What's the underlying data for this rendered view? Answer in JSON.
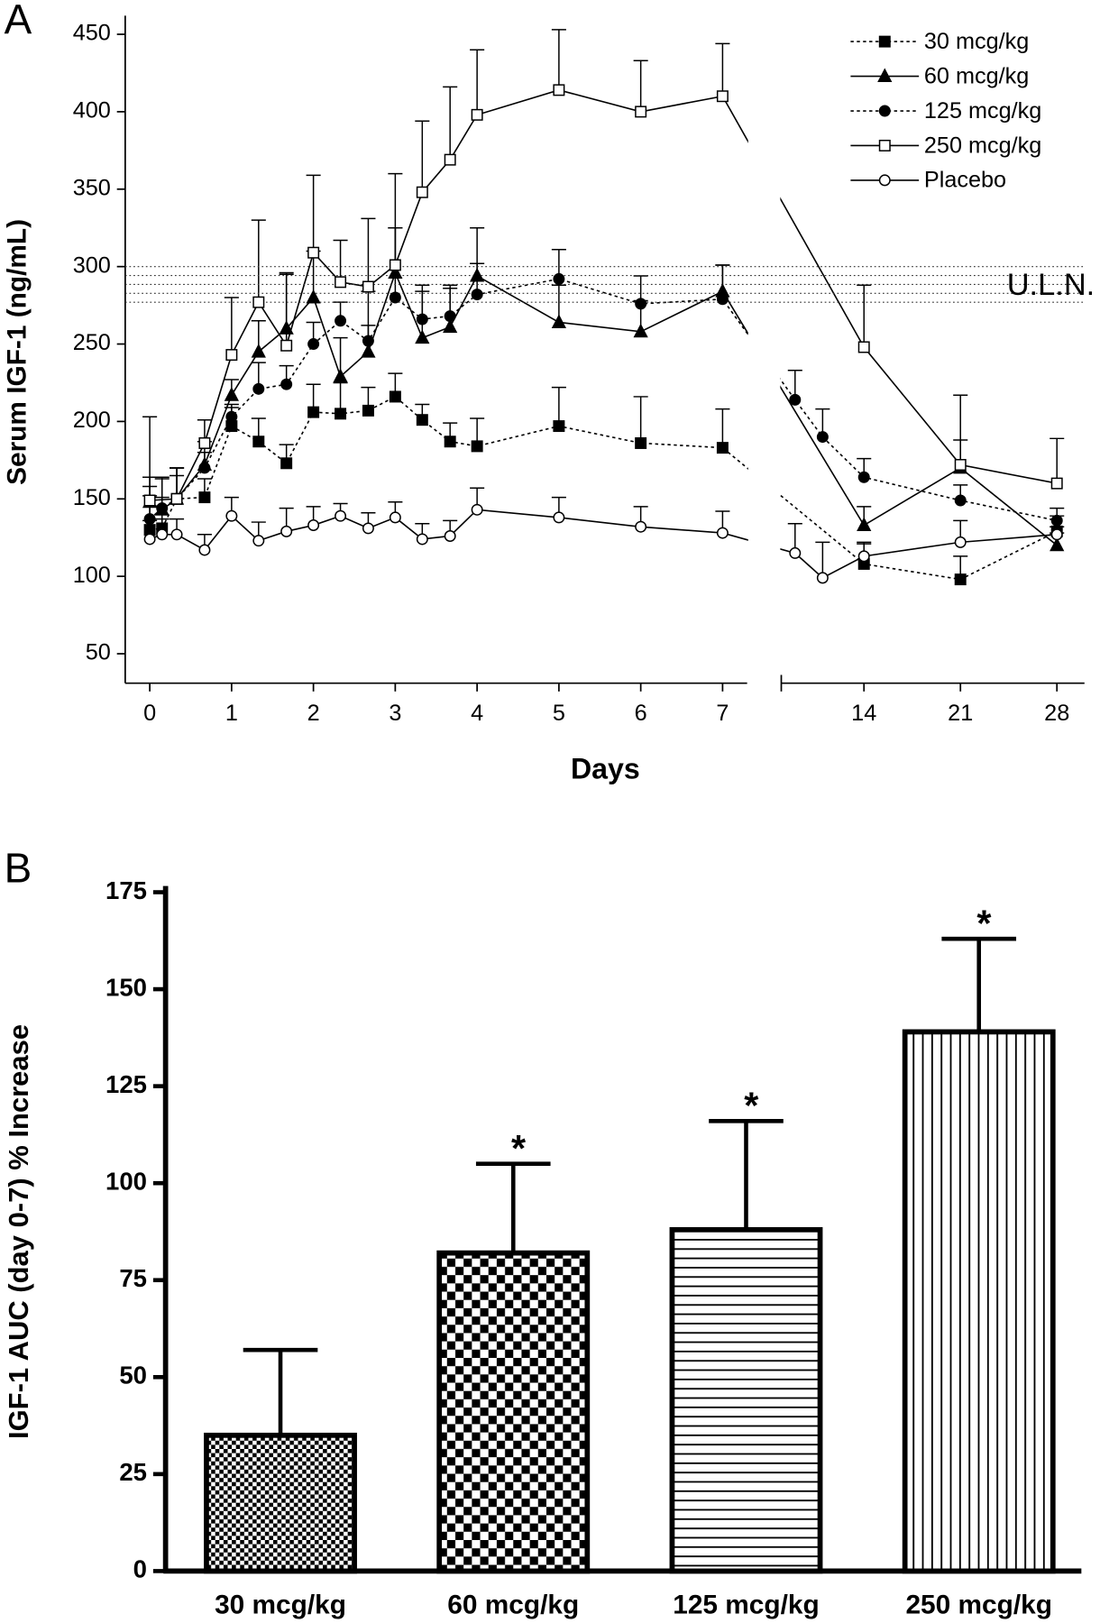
{
  "chart_data": [
    {
      "type": "line",
      "panel": "A",
      "ylabel": "Serum IGF-1 (ng/mL)",
      "xlabel": "Days",
      "xlim": [
        -0.3,
        30
      ],
      "xbreak": [
        7.3,
        8
      ],
      "xticks": [
        0,
        1,
        2,
        3,
        4,
        5,
        6,
        7,
        14,
        21,
        28
      ],
      "ylim": [
        31,
        462
      ],
      "yticks": [
        50,
        100,
        150,
        200,
        250,
        300,
        350,
        400,
        450
      ],
      "uln_band": [
        277,
        300
      ],
      "uln_label": "U.L.N.",
      "legend": "top-right",
      "series": [
        {
          "name": "30 mcg/kg",
          "color": "#000000",
          "dash": true,
          "marker": "square",
          "filled": true,
          "x": [
            0,
            0.15,
            0.33,
            0.67,
            1,
            1.33,
            1.67,
            2,
            2.33,
            2.67,
            3,
            3.33,
            3.67,
            4,
            5,
            6,
            7,
            14,
            21,
            28
          ],
          "values": [
            130,
            131,
            150,
            151,
            197,
            187,
            173,
            206,
            205,
            207,
            216,
            201,
            187,
            184,
            197,
            186,
            183,
            108,
            98,
            129
          ],
          "errors": [
            73,
            20,
            20,
            12,
            12,
            15,
            12,
            18,
            20,
            15,
            15,
            10,
            12,
            18,
            25,
            30,
            25,
            14,
            15,
            10
          ]
        },
        {
          "name": "60 mcg/kg",
          "color": "#000000",
          "dash": false,
          "marker": "triangle",
          "filled": true,
          "x": [
            0,
            0.15,
            0.33,
            0.67,
            1,
            1.33,
            1.67,
            2,
            2.33,
            2.67,
            3,
            3.33,
            3.67,
            4,
            5,
            6,
            7,
            14,
            21,
            28
          ],
          "values": [
            148,
            143,
            150,
            172,
            217,
            245,
            260,
            280,
            229,
            245,
            296,
            254,
            261,
            294,
            264,
            258,
            284,
            133,
            170,
            120
          ],
          "errors": [
            10,
            20,
            20,
            15,
            10,
            20,
            35,
            30,
            25,
            39,
            29,
            30,
            25,
            31,
            24,
            20,
            17,
            12,
            18,
            8
          ]
        },
        {
          "name": "125 mcg/kg",
          "color": "#000000",
          "dash": true,
          "marker": "circle",
          "filled": true,
          "x": [
            0,
            0.15,
            0.33,
            0.67,
            1,
            1.33,
            1.67,
            2,
            2.33,
            2.67,
            3,
            3.33,
            3.67,
            4,
            5,
            6,
            7,
            9,
            11,
            14,
            21,
            28
          ],
          "values": [
            137,
            144,
            150,
            170,
            203,
            221,
            224,
            250,
            265,
            252,
            280,
            266,
            268,
            282,
            292,
            276,
            279,
            214,
            190,
            164,
            149,
            136
          ],
          "errors": [
            15,
            20,
            15,
            10,
            8,
            17,
            12,
            14,
            12,
            10,
            45,
            22,
            20,
            20,
            19,
            18,
            22,
            19,
            18,
            12,
            10,
            8
          ]
        },
        {
          "name": "250 mcg/kg",
          "color": "#000000",
          "dash": false,
          "marker": "square",
          "filled": false,
          "x": [
            0,
            0.33,
            0.67,
            1,
            1.33,
            1.67,
            2,
            2.33,
            2.67,
            3,
            3.33,
            3.67,
            4,
            5,
            6,
            7,
            14,
            21,
            28
          ],
          "values": [
            149,
            150,
            186,
            243,
            277,
            249,
            309,
            290,
            287,
            301,
            348,
            369,
            398,
            414,
            400,
            410,
            248,
            172,
            160
          ],
          "errors": [
            15,
            20,
            15,
            37,
            53,
            47,
            50,
            27,
            44,
            59,
            46,
            47,
            42,
            39,
            33,
            34,
            40,
            45,
            29
          ]
        },
        {
          "name": "Placebo",
          "color": "#000000",
          "dash": false,
          "marker": "circle",
          "filled": false,
          "x": [
            0,
            0.15,
            0.33,
            0.67,
            1,
            1.33,
            1.67,
            2,
            2.33,
            2.67,
            3,
            3.33,
            3.67,
            4,
            5,
            6,
            7,
            9,
            11,
            14,
            21,
            28
          ],
          "values": [
            124,
            127,
            127,
            117,
            139,
            123,
            129,
            133,
            139,
            131,
            138,
            124,
            126,
            143,
            138,
            132,
            128,
            115,
            99,
            113,
            122,
            127
          ],
          "errors": [
            12,
            10,
            10,
            10,
            12,
            12,
            15,
            12,
            8,
            10,
            10,
            10,
            10,
            14,
            13,
            13,
            14,
            19,
            23,
            8,
            14,
            5
          ]
        }
      ]
    },
    {
      "type": "bar",
      "panel": "B",
      "ylabel": "IGF-1 AUC (day 0-7) % Increase",
      "categories": [
        "30 mcg/kg",
        "60 mcg/kg",
        "125 mcg/kg",
        "250 mcg/kg"
      ],
      "values": [
        35,
        82,
        88,
        139
      ],
      "errors": [
        22,
        23,
        28,
        24
      ],
      "patterns": [
        "fine-checker",
        "checker",
        "horizontal",
        "vertical"
      ],
      "significant": [
        false,
        true,
        true,
        true
      ],
      "significance_label": "*",
      "color": "#000000",
      "ylim": [
        0,
        175
      ],
      "yticks": [
        0,
        25,
        50,
        75,
        100,
        125,
        150,
        175
      ]
    }
  ]
}
